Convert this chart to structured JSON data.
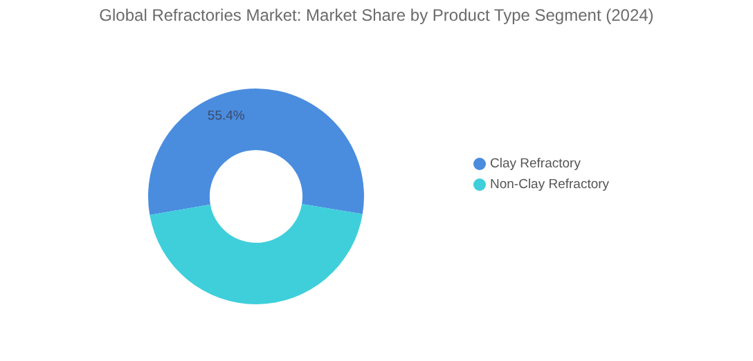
{
  "chart_data": {
    "type": "donut",
    "title": "Global Refractories Market: Market Share by Product Type Segment (2024)",
    "categories": [
      "Clay Refractory",
      "Non-Clay Refractory"
    ],
    "values": [
      55.4,
      44.6
    ],
    "value_labels": [
      "55.4%",
      null
    ],
    "colors": [
      "#4a8ddf",
      "#3ecfdb"
    ],
    "legend": "right"
  }
}
